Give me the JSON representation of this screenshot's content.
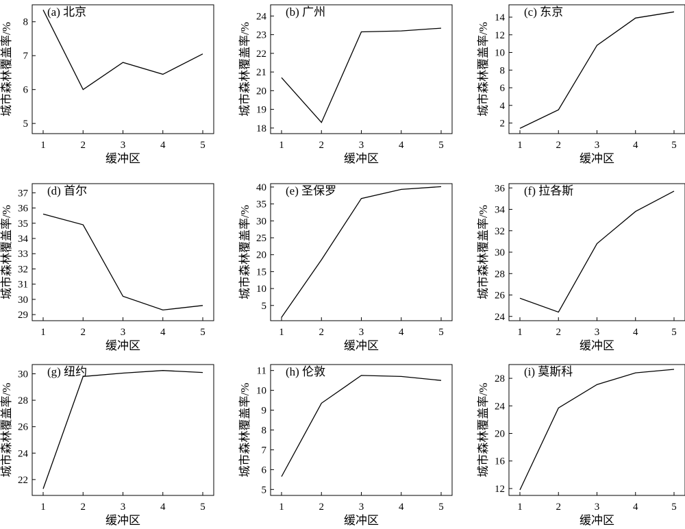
{
  "chart_data": [
    {
      "type": "line",
      "title": "(a) 北京",
      "xlabel": "缓冲区",
      "ylabel": "城市森林覆盖率/%",
      "x": [
        1,
        2,
        3,
        4,
        5
      ],
      "xticks": [
        "1",
        "2",
        "3",
        "4",
        "5"
      ],
      "series": [
        {
          "values": [
            8.35,
            6.0,
            6.8,
            6.45,
            7.05
          ]
        }
      ],
      "ylim": [
        4.7,
        8.5
      ],
      "yticks": [
        5,
        6,
        7,
        8
      ],
      "grid": false
    },
    {
      "type": "line",
      "title": "(b) 广州",
      "xlabel": "缓冲区",
      "ylabel": "城市森林覆盖率/%",
      "x": [
        1,
        2,
        3,
        4,
        5
      ],
      "xticks": [
        "1",
        "2",
        "3",
        "4",
        "5"
      ],
      "series": [
        {
          "values": [
            20.7,
            18.3,
            23.15,
            23.2,
            23.35
          ]
        }
      ],
      "ylim": [
        17.7,
        24.6
      ],
      "yticks": [
        18,
        19,
        20,
        21,
        22,
        23,
        24
      ],
      "grid": false
    },
    {
      "type": "line",
      "title": "(c) 东京",
      "xlabel": "缓冲区",
      "ylabel": "城市森林覆盖率/%",
      "x": [
        1,
        2,
        3,
        4,
        5
      ],
      "xticks": [
        "1",
        "2",
        "3",
        "4",
        "5"
      ],
      "series": [
        {
          "values": [
            1.4,
            3.5,
            10.8,
            13.9,
            14.6
          ]
        }
      ],
      "ylim": [
        0.8,
        15.4
      ],
      "yticks": [
        2,
        4,
        6,
        8,
        10,
        12,
        14
      ],
      "grid": false
    },
    {
      "type": "line",
      "title": "(d) 首尔",
      "xlabel": "缓冲区",
      "ylabel": "城市森林覆盖率/%",
      "x": [
        1,
        2,
        3,
        4,
        5
      ],
      "xticks": [
        "1",
        "2",
        "3",
        "4",
        "5"
      ],
      "series": [
        {
          "values": [
            35.6,
            34.9,
            30.2,
            29.3,
            29.6
          ]
        }
      ],
      "ylim": [
        28.6,
        37.6
      ],
      "yticks": [
        29,
        30,
        31,
        32,
        33,
        34,
        35,
        36,
        37
      ],
      "grid": false
    },
    {
      "type": "line",
      "title": "(e) 圣保罗",
      "xlabel": "缓冲区",
      "ylabel": "城市森林覆盖率/%",
      "x": [
        1,
        2,
        3,
        4,
        5
      ],
      "xticks": [
        "1",
        "2",
        "3",
        "4",
        "5"
      ],
      "series": [
        {
          "values": [
            1.5,
            18.5,
            36.6,
            39.3,
            40.1
          ]
        }
      ],
      "ylim": [
        0.5,
        41.0
      ],
      "yticks": [
        5,
        10,
        15,
        20,
        25,
        30,
        35,
        40
      ],
      "grid": false
    },
    {
      "type": "line",
      "title": "(f) 拉各斯",
      "xlabel": "缓冲区",
      "ylabel": "城市森林覆盖率/%",
      "x": [
        1,
        2,
        3,
        4,
        5
      ],
      "xticks": [
        "1",
        "2",
        "3",
        "4",
        "5"
      ],
      "series": [
        {
          "values": [
            25.7,
            24.4,
            30.8,
            33.8,
            35.7
          ]
        }
      ],
      "ylim": [
        23.6,
        36.4
      ],
      "yticks": [
        24,
        26,
        28,
        30,
        32,
        34,
        36
      ],
      "grid": false
    },
    {
      "type": "line",
      "title": "(g) 纽约",
      "xlabel": "缓冲区",
      "ylabel": "城市森林覆盖率/%",
      "x": [
        1,
        2,
        3,
        4,
        5
      ],
      "xticks": [
        "1",
        "2",
        "3",
        "4",
        "5"
      ],
      "series": [
        {
          "values": [
            21.3,
            29.8,
            30.05,
            30.25,
            30.1
          ]
        }
      ],
      "ylim": [
        20.8,
        30.7
      ],
      "yticks": [
        22,
        24,
        26,
        28,
        30
      ],
      "grid": false
    },
    {
      "type": "line",
      "title": "(h) 伦敦",
      "xlabel": "缓冲区",
      "ylabel": "城市森林覆盖率/%",
      "x": [
        1,
        2,
        3,
        4,
        5
      ],
      "xticks": [
        "1",
        "2",
        "3",
        "4",
        "5"
      ],
      "series": [
        {
          "values": [
            5.65,
            9.35,
            10.75,
            10.7,
            10.5
          ]
        }
      ],
      "ylim": [
        4.7,
        11.3
      ],
      "yticks": [
        5,
        6,
        7,
        8,
        9,
        10,
        11
      ],
      "grid": false
    },
    {
      "type": "line",
      "title": "(i) 莫斯科",
      "xlabel": "缓冲区",
      "ylabel": "城市森林覆盖率/%",
      "x": [
        1,
        2,
        3,
        4,
        5
      ],
      "xticks": [
        "1",
        "2",
        "3",
        "4",
        "5"
      ],
      "series": [
        {
          "values": [
            11.8,
            23.7,
            27.1,
            28.8,
            29.3
          ]
        }
      ],
      "ylim": [
        11.0,
        30.0
      ],
      "yticks": [
        12,
        16,
        20,
        24,
        28
      ],
      "grid": false
    }
  ]
}
